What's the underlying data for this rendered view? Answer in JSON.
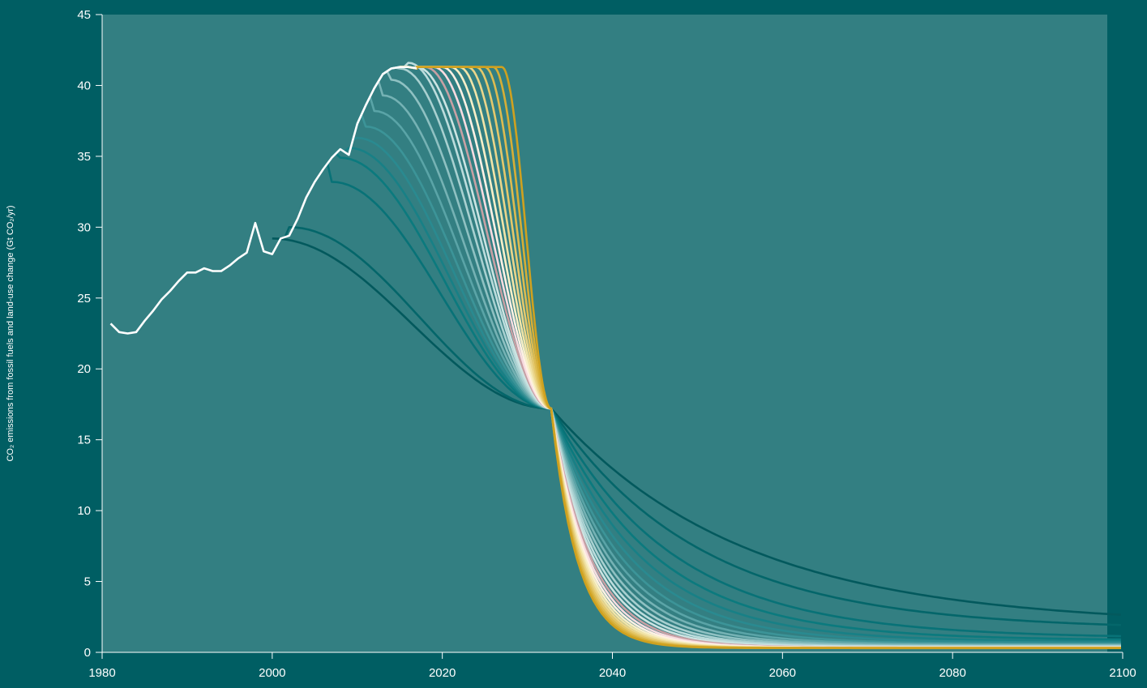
{
  "chart_data": {
    "type": "line",
    "title": "",
    "xlabel": "",
    "ylabel": "CO₂ emissions from fossil fuels and land-use change  (Gt CO₂/yr)",
    "xlim": [
      1980,
      2100
    ],
    "ylim": [
      0,
      45
    ],
    "x_ticks": [
      1980,
      2000,
      2020,
      2040,
      2060,
      2080,
      2100
    ],
    "y_ticks": [
      0,
      5,
      10,
      15,
      20,
      25,
      30,
      35,
      40,
      45
    ],
    "grid": false,
    "legend": "none",
    "colors": {
      "page_background": "#005e63",
      "plot_background": "#337f82",
      "historical": "#ffffff",
      "axis": "#ffffff"
    },
    "historical": {
      "name": "",
      "x": [
        1981,
        1982,
        1983,
        1984,
        1985,
        1986,
        1987,
        1988,
        1989,
        1990,
        1991,
        1992,
        1993,
        1994,
        1995,
        1996,
        1997,
        1998,
        1999,
        2000,
        2001,
        2002,
        2003,
        2004,
        2005,
        2006,
        2007,
        2008,
        2009,
        2010,
        2011,
        2012,
        2013,
        2014,
        2015,
        2016,
        2017
      ],
      "y": [
        23.2,
        22.6,
        22.5,
        22.6,
        23.4,
        24.1,
        24.9,
        25.5,
        26.2,
        26.8,
        26.8,
        27.1,
        26.9,
        26.9,
        27.3,
        27.8,
        28.2,
        30.3,
        28.3,
        28.1,
        29.2,
        29.4,
        30.6,
        32.1,
        33.2,
        34.1,
        34.9,
        35.5,
        35.1,
        37.3,
        38.6,
        39.8,
        40.8,
        41.2,
        41.3,
        41.3,
        41.2
      ]
    },
    "convergence_point": {
      "x": 2032.8,
      "y": 17.2
    },
    "scenario_params": {
      "peak_anchor_year": 2017,
      "tail_floor": 0.3
    },
    "scenarios": [
      {
        "peak_year": 2000,
        "peak_value": 29.2,
        "end_value": 1.9,
        "color": "#03595d"
      },
      {
        "peak_year": 2002,
        "peak_value": 30.0,
        "end_value": 1.6,
        "color": "#04666a"
      },
      {
        "peak_year": 2007,
        "peak_value": 33.2,
        "end_value": 1.0,
        "color": "#087277"
      },
      {
        "peak_year": 2008,
        "peak_value": 34.9,
        "end_value": 0.85,
        "color": "#0b7a7e"
      },
      {
        "peak_year": 2009,
        "peak_value": 35.6,
        "end_value": 0.75,
        "color": "#188086"
      },
      {
        "peak_year": 2010,
        "peak_value": 36.3,
        "end_value": 0.68,
        "color": "#2a8a90"
      },
      {
        "peak_year": 2011,
        "peak_value": 37.1,
        "end_value": 0.6,
        "color": "#3c9498"
      },
      {
        "peak_year": 2012,
        "peak_value": 38.2,
        "end_value": 0.55,
        "color": "#5aa4a7"
      },
      {
        "peak_year": 2013,
        "peak_value": 39.3,
        "end_value": 0.5,
        "color": "#75b2b4"
      },
      {
        "peak_year": 2014,
        "peak_value": 40.4,
        "end_value": 0.46,
        "color": "#8fc1c2"
      },
      {
        "peak_year": 2015,
        "peak_value": 41.2,
        "end_value": 0.42,
        "color": "#a8d0d0"
      },
      {
        "peak_year": 2016,
        "peak_value": 41.6,
        "end_value": 0.4,
        "color": "#bcdcdc"
      },
      {
        "peak_year": 2017,
        "peak_value": 41.3,
        "end_value": 0.38,
        "color": "#cce4e2"
      },
      {
        "peak_year": 2018,
        "peak_value": 41.3,
        "end_value": 0.36,
        "color": "#c7a0a4"
      },
      {
        "peak_year": 2019,
        "peak_value": 41.3,
        "end_value": 0.35,
        "color": "#f8dbe0"
      },
      {
        "peak_year": 2020,
        "peak_value": 41.3,
        "end_value": 0.34,
        "color": "#fff1e4"
      },
      {
        "peak_year": 2021,
        "peak_value": 41.3,
        "end_value": 0.33,
        "color": "#f8efc8"
      },
      {
        "peak_year": 2022,
        "peak_value": 41.3,
        "end_value": 0.33,
        "color": "#f1e4a8"
      },
      {
        "peak_year": 2023,
        "peak_value": 41.3,
        "end_value": 0.32,
        "color": "#ead58a"
      },
      {
        "peak_year": 2024,
        "peak_value": 41.3,
        "end_value": 0.32,
        "color": "#e4c86c"
      },
      {
        "peak_year": 2025,
        "peak_value": 41.3,
        "end_value": 0.31,
        "color": "#ddbb50"
      },
      {
        "peak_year": 2026,
        "peak_value": 41.3,
        "end_value": 0.31,
        "color": "#d6ae36"
      },
      {
        "peak_year": 2027,
        "peak_value": 41.3,
        "end_value": 0.3,
        "color": "#cfa11f"
      }
    ]
  }
}
